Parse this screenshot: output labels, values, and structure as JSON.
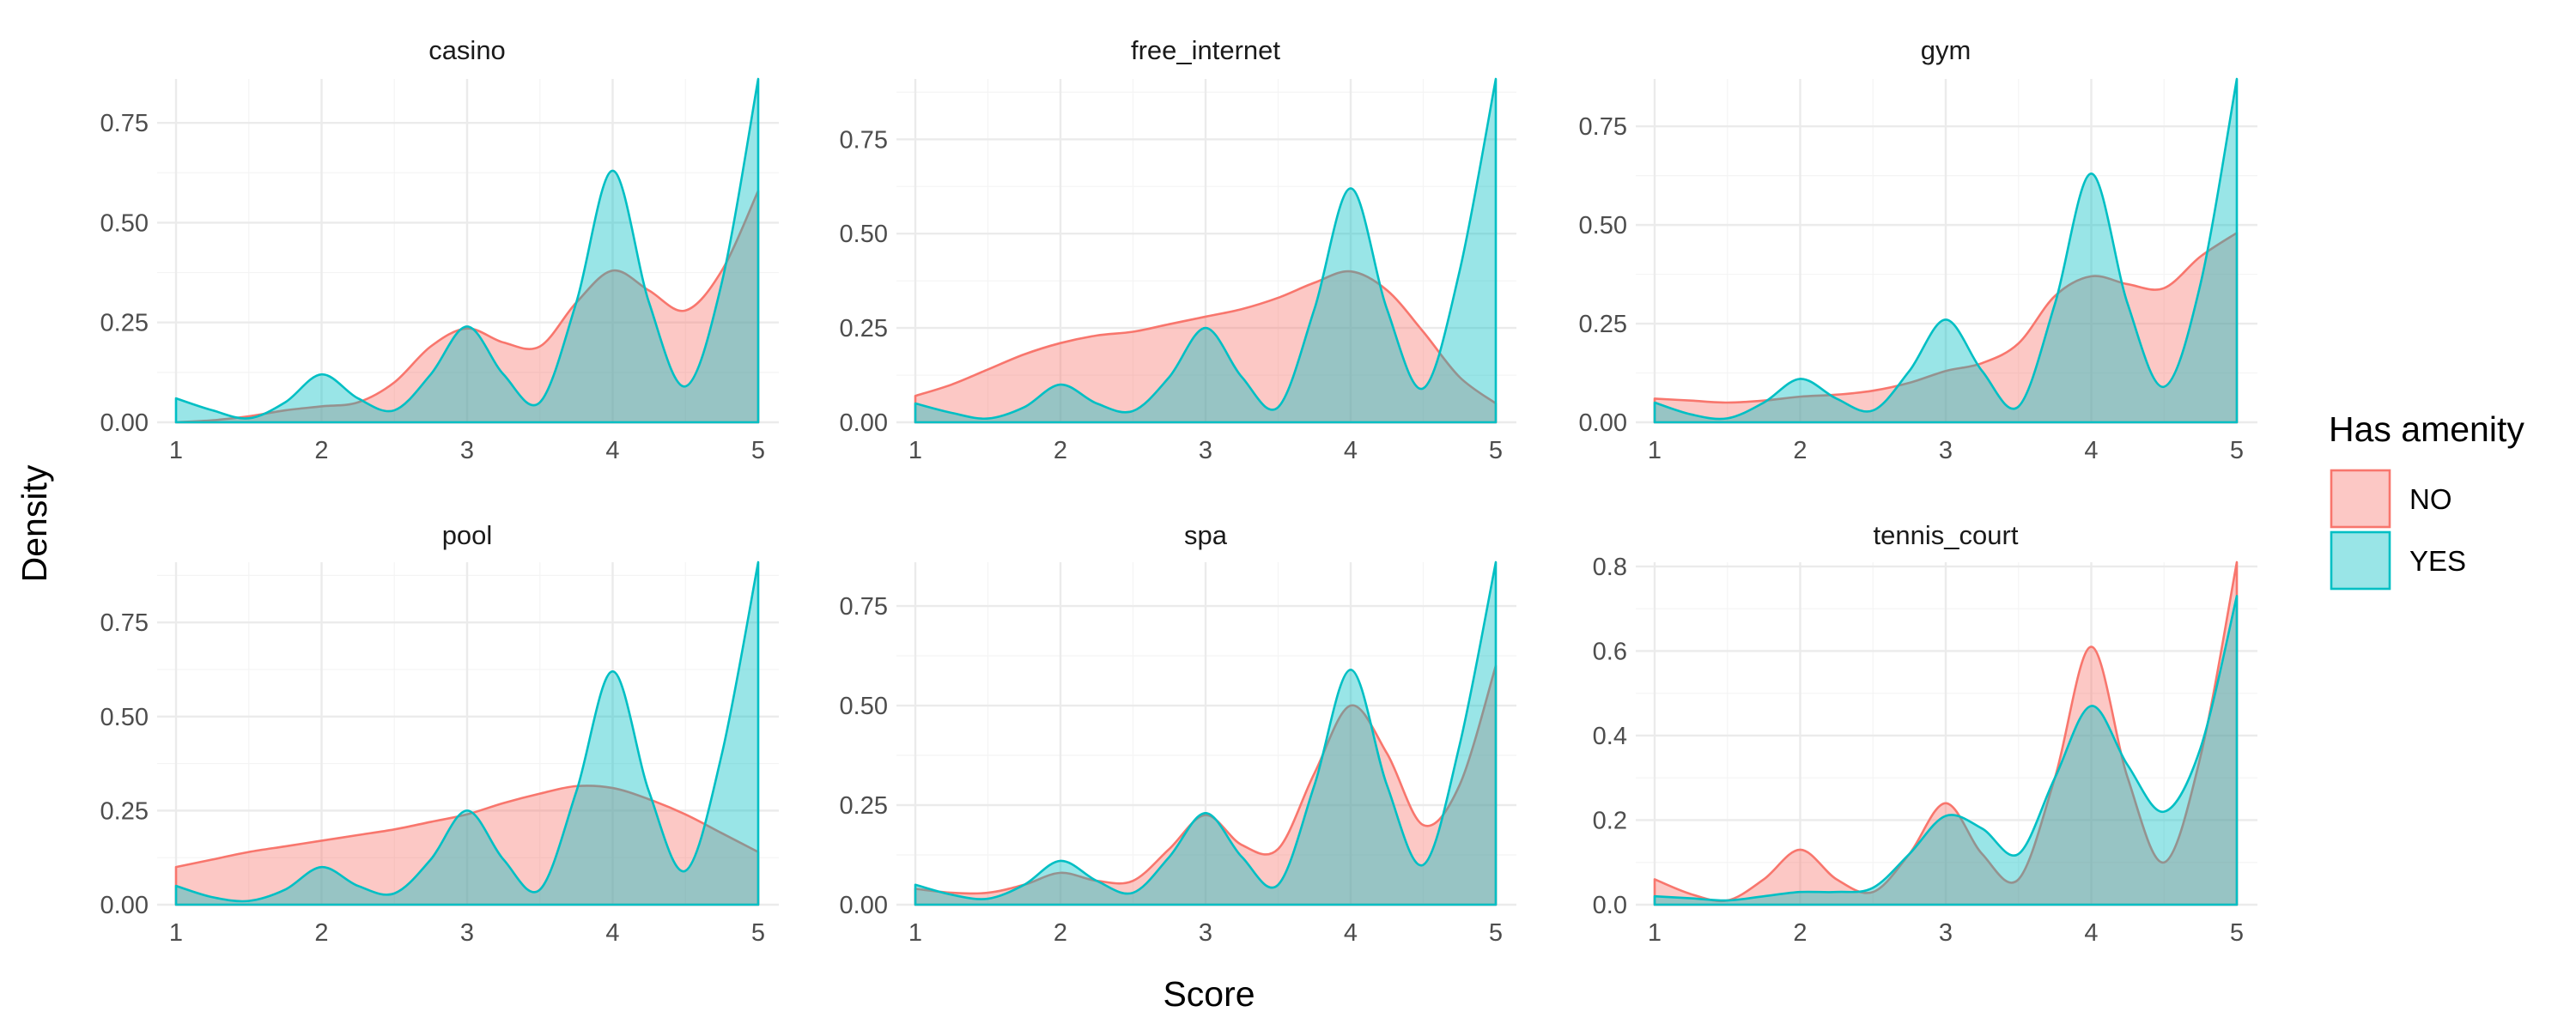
{
  "chart_data": {
    "type": "area",
    "chart_kind": "faceted density plot",
    "xlabel": "Score",
    "ylabel": "Density",
    "x_ticks": [
      1,
      2,
      3,
      4,
      5
    ],
    "xlim": [
      1,
      5
    ],
    "grid": true,
    "legend": {
      "title": "Has amenity",
      "placement": "right",
      "entries": [
        {
          "label": "NO",
          "fill": "#F8766D",
          "stroke": "#F8766D"
        },
        {
          "label": "YES",
          "fill": "#00BFC4",
          "stroke": "#00BFC4"
        }
      ]
    },
    "fill_opacity": 0.4,
    "series_names": [
      "NO",
      "YES"
    ],
    "facets": [
      {
        "title": "casino",
        "ylim": [
          0,
          0.86
        ],
        "y_ticks": [
          {
            "v": 0,
            "label": "0.00"
          },
          {
            "v": 0.25,
            "label": "0.25"
          },
          {
            "v": 0.5,
            "label": "0.50"
          },
          {
            "v": 0.75,
            "label": "0.75"
          }
        ],
        "series": [
          {
            "name": "NO",
            "x": [
              1,
              1.25,
              1.5,
              1.75,
              2,
              2.25,
              2.5,
              2.75,
              3,
              3.25,
              3.5,
              3.75,
              4,
              4.25,
              4.5,
              4.75,
              5
            ],
            "y": [
              0.0,
              0.005,
              0.015,
              0.03,
              0.04,
              0.05,
              0.1,
              0.19,
              0.235,
              0.2,
              0.19,
              0.3,
              0.38,
              0.33,
              0.28,
              0.38,
              0.58
            ]
          },
          {
            "name": "YES",
            "x": [
              1,
              1.25,
              1.5,
              1.75,
              2,
              2.25,
              2.5,
              2.75,
              3,
              3.25,
              3.5,
              3.75,
              4,
              4.25,
              4.5,
              4.75,
              5
            ],
            "y": [
              0.06,
              0.03,
              0.01,
              0.05,
              0.12,
              0.06,
              0.03,
              0.12,
              0.24,
              0.12,
              0.05,
              0.3,
              0.63,
              0.3,
              0.09,
              0.35,
              0.86
            ]
          }
        ]
      },
      {
        "title": "free_internet",
        "ylim": [
          0,
          0.91
        ],
        "y_ticks": [
          {
            "v": 0,
            "label": "0.00"
          },
          {
            "v": 0.25,
            "label": "0.25"
          },
          {
            "v": 0.5,
            "label": "0.50"
          },
          {
            "v": 0.75,
            "label": "0.75"
          }
        ],
        "series": [
          {
            "name": "NO",
            "x": [
              1,
              1.25,
              1.5,
              1.75,
              2,
              2.25,
              2.5,
              2.75,
              3,
              3.25,
              3.5,
              3.75,
              4,
              4.25,
              4.5,
              4.75,
              5
            ],
            "y": [
              0.07,
              0.1,
              0.14,
              0.18,
              0.21,
              0.23,
              0.24,
              0.26,
              0.28,
              0.3,
              0.33,
              0.37,
              0.4,
              0.35,
              0.24,
              0.12,
              0.05
            ]
          },
          {
            "name": "YES",
            "x": [
              1,
              1.25,
              1.5,
              1.75,
              2,
              2.25,
              2.5,
              2.75,
              3,
              3.25,
              3.5,
              3.75,
              4,
              4.25,
              4.5,
              4.75,
              5
            ],
            "y": [
              0.05,
              0.025,
              0.01,
              0.04,
              0.1,
              0.05,
              0.03,
              0.12,
              0.25,
              0.12,
              0.04,
              0.3,
              0.62,
              0.3,
              0.09,
              0.4,
              0.91
            ]
          }
        ]
      },
      {
        "title": "gym",
        "ylim": [
          0,
          0.87
        ],
        "y_ticks": [
          {
            "v": 0,
            "label": "0.00"
          },
          {
            "v": 0.25,
            "label": "0.25"
          },
          {
            "v": 0.5,
            "label": "0.50"
          },
          {
            "v": 0.75,
            "label": "0.75"
          }
        ],
        "series": [
          {
            "name": "NO",
            "x": [
              1,
              1.25,
              1.5,
              1.75,
              2,
              2.25,
              2.5,
              2.75,
              3,
              3.25,
              3.5,
              3.75,
              4,
              4.25,
              4.5,
              4.75,
              5
            ],
            "y": [
              0.06,
              0.055,
              0.05,
              0.055,
              0.065,
              0.07,
              0.08,
              0.1,
              0.13,
              0.15,
              0.2,
              0.32,
              0.37,
              0.35,
              0.34,
              0.42,
              0.48
            ]
          },
          {
            "name": "YES",
            "x": [
              1,
              1.25,
              1.5,
              1.75,
              2,
              2.25,
              2.5,
              2.75,
              3,
              3.25,
              3.5,
              3.75,
              4,
              4.25,
              4.5,
              4.75,
              5
            ],
            "y": [
              0.05,
              0.02,
              0.01,
              0.05,
              0.11,
              0.06,
              0.03,
              0.13,
              0.26,
              0.13,
              0.04,
              0.3,
              0.63,
              0.3,
              0.09,
              0.35,
              0.87
            ]
          }
        ]
      },
      {
        "title": "pool",
        "ylim": [
          0,
          0.91
        ],
        "y_ticks": [
          {
            "v": 0,
            "label": "0.00"
          },
          {
            "v": 0.25,
            "label": "0.25"
          },
          {
            "v": 0.5,
            "label": "0.50"
          },
          {
            "v": 0.75,
            "label": "0.75"
          }
        ],
        "series": [
          {
            "name": "NO",
            "x": [
              1,
              1.25,
              1.5,
              1.75,
              2,
              2.25,
              2.5,
              2.75,
              3,
              3.25,
              3.5,
              3.75,
              4,
              4.25,
              4.5,
              4.75,
              5
            ],
            "y": [
              0.1,
              0.12,
              0.14,
              0.155,
              0.17,
              0.185,
              0.2,
              0.22,
              0.24,
              0.27,
              0.295,
              0.315,
              0.31,
              0.28,
              0.24,
              0.19,
              0.14
            ]
          },
          {
            "name": "YES",
            "x": [
              1,
              1.25,
              1.5,
              1.75,
              2,
              2.25,
              2.5,
              2.75,
              3,
              3.25,
              3.5,
              3.75,
              4,
              4.25,
              4.5,
              4.75,
              5
            ],
            "y": [
              0.05,
              0.02,
              0.01,
              0.04,
              0.1,
              0.05,
              0.03,
              0.12,
              0.25,
              0.12,
              0.04,
              0.3,
              0.62,
              0.3,
              0.09,
              0.4,
              0.91
            ]
          }
        ]
      },
      {
        "title": "spa",
        "ylim": [
          0,
          0.86
        ],
        "y_ticks": [
          {
            "v": 0,
            "label": "0.00"
          },
          {
            "v": 0.25,
            "label": "0.25"
          },
          {
            "v": 0.5,
            "label": "0.50"
          },
          {
            "v": 0.75,
            "label": "0.75"
          }
        ],
        "series": [
          {
            "name": "NO",
            "x": [
              1,
              1.25,
              1.5,
              1.75,
              2,
              2.25,
              2.5,
              2.75,
              3,
              3.25,
              3.5,
              3.75,
              4,
              4.25,
              4.5,
              4.75,
              5
            ],
            "y": [
              0.04,
              0.03,
              0.03,
              0.05,
              0.08,
              0.06,
              0.06,
              0.14,
              0.225,
              0.15,
              0.14,
              0.33,
              0.5,
              0.38,
              0.2,
              0.3,
              0.6
            ]
          },
          {
            "name": "YES",
            "x": [
              1,
              1.25,
              1.5,
              1.75,
              2,
              2.25,
              2.5,
              2.75,
              3,
              3.25,
              3.5,
              3.75,
              4,
              4.25,
              4.5,
              4.75,
              5
            ],
            "y": [
              0.05,
              0.025,
              0.015,
              0.05,
              0.11,
              0.06,
              0.03,
              0.12,
              0.23,
              0.12,
              0.05,
              0.3,
              0.59,
              0.3,
              0.1,
              0.4,
              0.86
            ]
          }
        ]
      },
      {
        "title": "tennis_court",
        "ylim": [
          0,
          0.81
        ],
        "y_ticks": [
          {
            "v": 0,
            "label": "0.0"
          },
          {
            "v": 0.2,
            "label": "0.2"
          },
          {
            "v": 0.4,
            "label": "0.4"
          },
          {
            "v": 0.6,
            "label": "0.6"
          },
          {
            "v": 0.8,
            "label": "0.8"
          }
        ],
        "series": [
          {
            "name": "NO",
            "x": [
              1,
              1.25,
              1.5,
              1.75,
              2,
              2.25,
              2.5,
              2.75,
              3,
              3.25,
              3.5,
              3.75,
              4,
              4.25,
              4.5,
              4.75,
              5
            ],
            "y": [
              0.06,
              0.025,
              0.01,
              0.06,
              0.13,
              0.06,
              0.03,
              0.12,
              0.24,
              0.12,
              0.06,
              0.3,
              0.61,
              0.3,
              0.1,
              0.35,
              0.81
            ]
          },
          {
            "name": "YES",
            "x": [
              1,
              1.25,
              1.5,
              1.75,
              2,
              2.25,
              2.5,
              2.75,
              3,
              3.25,
              3.5,
              3.75,
              4,
              4.25,
              4.5,
              4.75,
              5
            ],
            "y": [
              0.02,
              0.015,
              0.01,
              0.02,
              0.03,
              0.03,
              0.04,
              0.12,
              0.21,
              0.18,
              0.12,
              0.3,
              0.47,
              0.33,
              0.22,
              0.37,
              0.73
            ]
          }
        ]
      }
    ]
  }
}
